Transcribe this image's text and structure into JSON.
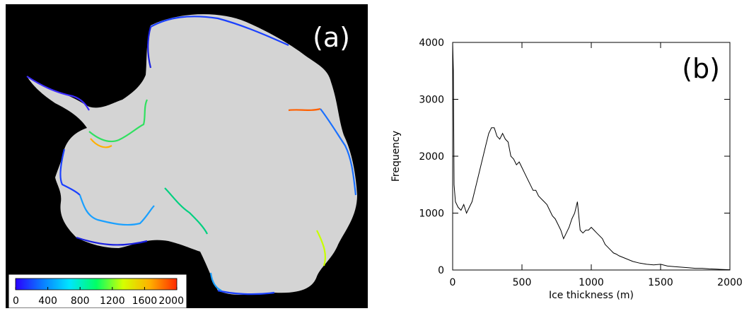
{
  "panel_a": {
    "label": "(a)",
    "colorbar": {
      "ticks": [
        "0",
        "400",
        "800",
        "1200",
        "1600",
        "2000"
      ],
      "min": 0,
      "max": 2000,
      "colors": [
        "#2a00ff",
        "#0a7cff",
        "#00e5ff",
        "#00ff66",
        "#d4ff00",
        "#ffb000",
        "#ff2a00"
      ]
    },
    "background_color": "#000000",
    "ice_color": "#d4d4d4"
  },
  "chart_data": {
    "type": "line",
    "panel_label": "(b)",
    "xlabel": "Ice thickness (m)",
    "ylabel": "Frequency",
    "xlim": [
      0,
      2000
    ],
    "ylim": [
      0,
      4000
    ],
    "xticks": [
      0,
      500,
      1000,
      1500,
      2000
    ],
    "yticks": [
      0,
      1000,
      2000,
      3000,
      4000
    ],
    "line_color": "#000000",
    "series": [
      {
        "x": [
          0,
          5,
          10,
          20,
          40,
          60,
          80,
          100,
          120,
          140,
          160,
          180,
          200,
          220,
          240,
          260,
          280,
          300,
          320,
          340,
          360,
          380,
          400,
          420,
          440,
          460,
          480,
          500,
          520,
          540,
          560,
          580,
          600,
          620,
          640,
          660,
          680,
          700,
          720,
          740,
          760,
          780,
          800,
          820,
          840,
          860,
          880,
          900,
          920,
          940,
          960,
          980,
          1000,
          1020,
          1040,
          1060,
          1080,
          1100,
          1120,
          1140,
          1160,
          1180,
          1200,
          1250,
          1300,
          1350,
          1400,
          1450,
          1500,
          1550,
          1600,
          1650,
          1700,
          1750,
          1800,
          1850,
          1900,
          1950,
          2000
        ],
        "y": [
          4000,
          3500,
          1500,
          1200,
          1100,
          1050,
          1150,
          1000,
          1100,
          1200,
          1400,
          1600,
          1800,
          2000,
          2200,
          2400,
          2500,
          2500,
          2350,
          2300,
          2400,
          2300,
          2250,
          2000,
          1950,
          1850,
          1900,
          1800,
          1700,
          1600,
          1500,
          1400,
          1400,
          1300,
          1250,
          1200,
          1150,
          1050,
          950,
          900,
          800,
          700,
          550,
          650,
          750,
          900,
          1000,
          1200,
          700,
          650,
          700,
          700,
          750,
          700,
          650,
          600,
          550,
          450,
          400,
          350,
          300,
          280,
          250,
          200,
          150,
          120,
          100,
          90,
          100,
          70,
          60,
          50,
          40,
          30,
          30,
          20,
          15,
          10,
          5
        ]
      }
    ]
  }
}
